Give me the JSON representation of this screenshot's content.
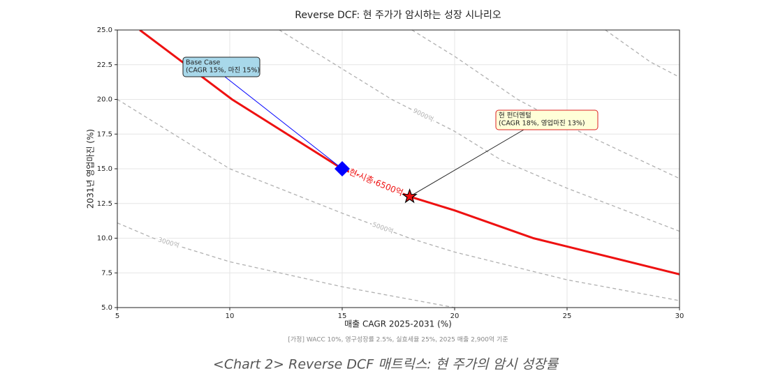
{
  "chart_data": {
    "type": "line",
    "title": "Reverse DCF: 현 주가가 암시하는 성장 시나리오",
    "x_label": "매출 CAGR 2025-2031 (%)",
    "y_label": "2031년 영업마진 (%)",
    "footnote": "[가정] WACC 10%, 영구성장률 2.5%, 실효세율 25%, 2025 매출 2,900억 기준",
    "caption": "<Chart 2> Reverse DCF 매트릭스: 현 주가의 암시 성장률",
    "xlim": [
      5,
      30
    ],
    "xticks": [
      5,
      10,
      15,
      20,
      25,
      30
    ],
    "ylim": [
      5,
      25
    ],
    "yticks": [
      {
        "value": 5,
        "label": "5.0"
      },
      7.5,
      {
        "value": 10,
        "label": "10.0"
      },
      12.5,
      {
        "value": 15,
        "label": "15.0"
      },
      17.5,
      {
        "value": 20,
        "label": "20.0"
      },
      22.5,
      {
        "value": 25,
        "label": "25.0"
      }
    ],
    "grid": true,
    "series": [
      {
        "label": "현 시총 6500억",
        "color": "#ee1111",
        "dashed": false,
        "x": [
          6.0,
          10.1,
          15,
          18,
          20,
          23.5,
          25,
          30
        ],
        "values": [
          25,
          20,
          15,
          13,
          12,
          10,
          9.4,
          7.4
        ]
      },
      {
        "label": "3000억",
        "color": "#b0b0b0",
        "dashed": true,
        "x": [
          5,
          6.6,
          10,
          15,
          20
        ],
        "values": [
          11.1,
          10,
          8.3,
          6.5,
          5
        ]
      },
      {
        "label": "5000억",
        "color": "#b0b0b0",
        "dashed": true,
        "x": [
          5,
          10,
          15,
          18,
          20,
          25,
          30
        ],
        "values": [
          20,
          15,
          11.8,
          10,
          9,
          7,
          5.5
        ]
      },
      {
        "label": "9000억",
        "color": "#b0b0b0",
        "dashed": true,
        "x": [
          12.2,
          15,
          17.2,
          20,
          22.1,
          25,
          30
        ],
        "values": [
          25,
          22.2,
          20,
          17.7,
          15.6,
          13.6,
          10.5
        ]
      },
      {
        "color": "#b0b0b0",
        "dashed": true,
        "x": [
          18.1,
          20,
          22.8,
          25,
          30
        ],
        "values": [
          25,
          23.1,
          20,
          18.1,
          14.3
        ]
      },
      {
        "color": "#b0b0b0",
        "dashed": true,
        "x": [
          26.7,
          28.7,
          30
        ],
        "values": [
          25,
          22.7,
          21.6
        ]
      }
    ],
    "points": [
      {
        "x": 15,
        "y": 15,
        "color": "#0000ff",
        "marker": "diamond"
      },
      {
        "x": 18,
        "y": 13,
        "color": "#ee1111",
        "marker": "star"
      }
    ],
    "annotations": [
      {
        "lines": [
          "Base Case",
          "(CAGR 15%, 마진 15%)"
        ],
        "point": 0,
        "bg": "#a8d8ea",
        "edge": "#222222",
        "arrow": "#0000ff"
      },
      {
        "lines": [
          "현 펀더멘털",
          "(CAGR 18%, 영업마진 13%)"
        ],
        "point": 1,
        "bg": "#ffffd8",
        "edge": "#dd2222",
        "arrow": "#222222"
      }
    ]
  }
}
